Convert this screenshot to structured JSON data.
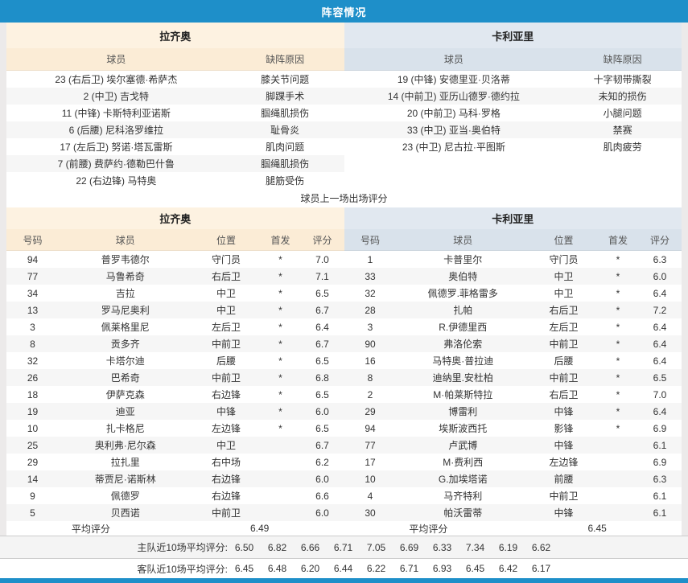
{
  "title": "阵容情况",
  "colors": {
    "accent_blue": "#1e8fc9",
    "home_header": "#fdf2e1",
    "home_subheader": "#fbecd6",
    "away_header": "#e1e8f0",
    "away_subheader": "#d9e2eb",
    "stripe": "#f6f6f6",
    "gutter": "#eceaea"
  },
  "missing_section": {
    "headers": {
      "player": "球员",
      "reason": "缺阵原因"
    },
    "left": {
      "team": "拉齐奥",
      "rows": [
        {
          "player": "23 (右后卫) 埃尔塞德·希萨杰",
          "reason": "膝关节问题"
        },
        {
          "player": "2 (中卫) 吉戈特",
          "reason": "脚踝手术"
        },
        {
          "player": "11 (中锋) 卡斯特利亚诺斯",
          "reason": "腘绳肌损伤"
        },
        {
          "player": "6 (后腰) 尼科洛罗维拉",
          "reason": "耻骨炎"
        },
        {
          "player": "17 (左后卫) 努诺·塔瓦雷斯",
          "reason": "肌肉问题"
        },
        {
          "player": "7 (前腰) 费萨约·德勒巴什鲁",
          "reason": "腘绳肌损伤"
        },
        {
          "player": "22 (右边锋) 马特奥",
          "reason": "腿筋受伤"
        }
      ]
    },
    "right": {
      "team": "卡利亚里",
      "rows": [
        {
          "player": "19 (中锋) 安德里亚·贝洛蒂",
          "reason": "十字韧带撕裂"
        },
        {
          "player": "14 (中前卫) 亚历山德罗·德约拉",
          "reason": "未知的损伤"
        },
        {
          "player": "20 (中前卫) 马科·罗格",
          "reason": "小腿问题"
        },
        {
          "player": "33 (中卫) 亚当·奥伯特",
          "reason": "禁赛"
        },
        {
          "player": "23 (中卫) 尼古拉·平图斯",
          "reason": "肌肉疲劳"
        }
      ]
    }
  },
  "ratings_caption": "球员上一场出场评分",
  "ratings_section": {
    "headers": {
      "number": "号码",
      "player": "球员",
      "position": "位置",
      "starter": "首发",
      "rating": "评分"
    },
    "average_label": "平均评分",
    "left": {
      "team": "拉齐奥",
      "average": "6.49",
      "rows": [
        {
          "number": "94",
          "player": "普罗韦德尔",
          "position": "守门员",
          "starter": "*",
          "rating": "7.0"
        },
        {
          "number": "77",
          "player": "马鲁希奇",
          "position": "右后卫",
          "starter": "*",
          "rating": "7.1"
        },
        {
          "number": "34",
          "player": "吉拉",
          "position": "中卫",
          "starter": "*",
          "rating": "6.5"
        },
        {
          "number": "13",
          "player": "罗马尼奥利",
          "position": "中卫",
          "starter": "*",
          "rating": "6.7"
        },
        {
          "number": "3",
          "player": "佩莱格里尼",
          "position": "左后卫",
          "starter": "*",
          "rating": "6.4"
        },
        {
          "number": "8",
          "player": "贡多齐",
          "position": "中前卫",
          "starter": "*",
          "rating": "6.7"
        },
        {
          "number": "32",
          "player": "卡塔尔迪",
          "position": "后腰",
          "starter": "*",
          "rating": "6.5"
        },
        {
          "number": "26",
          "player": "巴希奇",
          "position": "中前卫",
          "starter": "*",
          "rating": "6.8"
        },
        {
          "number": "18",
          "player": "伊萨克森",
          "position": "右边锋",
          "starter": "*",
          "rating": "6.5"
        },
        {
          "number": "19",
          "player": "迪亚",
          "position": "中锋",
          "starter": "*",
          "rating": "6.0"
        },
        {
          "number": "10",
          "player": "扎卡格尼",
          "position": "左边锋",
          "starter": "*",
          "rating": "6.5"
        },
        {
          "number": "25",
          "player": "奥利弗·尼尔森",
          "position": "中卫",
          "starter": "",
          "rating": "6.7"
        },
        {
          "number": "29",
          "player": "拉扎里",
          "position": "右中场",
          "starter": "",
          "rating": "6.2"
        },
        {
          "number": "14",
          "player": "蒂贾尼·诺斯林",
          "position": "右边锋",
          "starter": "",
          "rating": "6.0"
        },
        {
          "number": "9",
          "player": "佩德罗",
          "position": "右边锋",
          "starter": "",
          "rating": "6.6"
        },
        {
          "number": "5",
          "player": "贝西诺",
          "position": "中前卫",
          "starter": "",
          "rating": "6.0"
        }
      ]
    },
    "right": {
      "team": "卡利亚里",
      "average": "6.45",
      "rows": [
        {
          "number": "1",
          "player": "卡普里尔",
          "position": "守门员",
          "starter": "*",
          "rating": "6.3"
        },
        {
          "number": "33",
          "player": "奥伯特",
          "position": "中卫",
          "starter": "*",
          "rating": "6.0"
        },
        {
          "number": "32",
          "player": "佩德罗.菲格雷多",
          "position": "中卫",
          "starter": "*",
          "rating": "6.4"
        },
        {
          "number": "28",
          "player": "扎帕",
          "position": "右后卫",
          "starter": "*",
          "rating": "7.2"
        },
        {
          "number": "3",
          "player": "R.伊德里西",
          "position": "左后卫",
          "starter": "*",
          "rating": "6.4"
        },
        {
          "number": "90",
          "player": "弗洛伦索",
          "position": "中前卫",
          "starter": "*",
          "rating": "6.4"
        },
        {
          "number": "16",
          "player": "马特奥·普拉迪",
          "position": "后腰",
          "starter": "*",
          "rating": "6.4"
        },
        {
          "number": "8",
          "player": "迪纳里.安杜柏",
          "position": "中前卫",
          "starter": "*",
          "rating": "6.5"
        },
        {
          "number": "2",
          "player": "M·帕莱斯特拉",
          "position": "右后卫",
          "starter": "*",
          "rating": "7.0"
        },
        {
          "number": "29",
          "player": "博雷利",
          "position": "中锋",
          "starter": "*",
          "rating": "6.4"
        },
        {
          "number": "94",
          "player": "埃斯波西托",
          "position": "影锋",
          "starter": "*",
          "rating": "6.9"
        },
        {
          "number": "77",
          "player": "卢武博",
          "position": "中锋",
          "starter": "",
          "rating": "6.1"
        },
        {
          "number": "17",
          "player": "M·费利西",
          "position": "左边锋",
          "starter": "",
          "rating": "6.9"
        },
        {
          "number": "10",
          "player": "G.加埃塔诺",
          "position": "前腰",
          "starter": "",
          "rating": "6.3"
        },
        {
          "number": "4",
          "player": "马齐特利",
          "position": "中前卫",
          "starter": "",
          "rating": "6.1"
        },
        {
          "number": "30",
          "player": "帕沃雷蒂",
          "position": "中锋",
          "starter": "",
          "rating": "6.1"
        }
      ]
    }
  },
  "footer": {
    "home_label": "主队近10场平均评分:",
    "home_values": [
      "6.50",
      "6.82",
      "6.66",
      "6.71",
      "7.05",
      "6.69",
      "6.33",
      "7.34",
      "6.19",
      "6.62"
    ],
    "away_label": "客队近10场平均评分:",
    "away_values": [
      "6.45",
      "6.48",
      "6.20",
      "6.44",
      "6.22",
      "6.71",
      "6.93",
      "6.45",
      "6.42",
      "6.17"
    ]
  }
}
